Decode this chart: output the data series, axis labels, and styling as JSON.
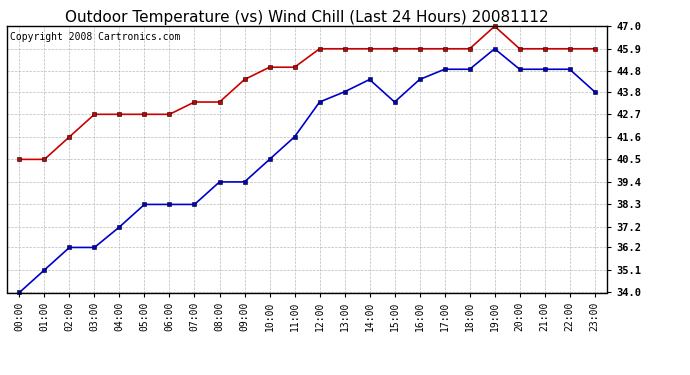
{
  "title": "Outdoor Temperature (vs) Wind Chill (Last 24 Hours) 20081112",
  "copyright": "Copyright 2008 Cartronics.com",
  "hours": [
    "00:00",
    "01:00",
    "02:00",
    "03:00",
    "04:00",
    "05:00",
    "06:00",
    "07:00",
    "08:00",
    "09:00",
    "10:00",
    "11:00",
    "12:00",
    "13:00",
    "14:00",
    "15:00",
    "16:00",
    "17:00",
    "18:00",
    "19:00",
    "20:00",
    "21:00",
    "22:00",
    "23:00"
  ],
  "temp": [
    40.5,
    40.5,
    41.6,
    42.7,
    42.7,
    42.7,
    42.7,
    43.3,
    43.3,
    44.4,
    45.0,
    45.0,
    45.9,
    45.9,
    45.9,
    45.9,
    45.9,
    45.9,
    45.9,
    47.0,
    45.9,
    45.9,
    45.9,
    45.9
  ],
  "wind_chill": [
    34.0,
    35.1,
    36.2,
    36.2,
    37.2,
    38.3,
    38.3,
    38.3,
    39.4,
    39.4,
    40.5,
    41.6,
    43.3,
    43.8,
    44.4,
    43.3,
    44.4,
    44.9,
    44.9,
    45.9,
    44.9,
    44.9,
    44.9,
    43.8
  ],
  "temp_color": "#cc0000",
  "wind_chill_color": "#0000cc",
  "ylim_min": 34.0,
  "ylim_max": 47.0,
  "yticks": [
    34.0,
    35.1,
    36.2,
    37.2,
    38.3,
    39.4,
    40.5,
    41.6,
    42.7,
    43.8,
    44.8,
    45.9,
    47.0
  ],
  "ytick_labels": [
    "34.0",
    "35.1",
    "36.2",
    "37.2",
    "38.3",
    "39.4",
    "40.5",
    "41.6",
    "42.7",
    "43.8",
    "44.8",
    "45.9",
    "47.0"
  ],
  "background_color": "#ffffff",
  "grid_color": "#bbbbbb",
  "title_fontsize": 11,
  "copyright_fontsize": 7,
  "marker": "s",
  "markersize": 3,
  "linewidth": 1.2
}
